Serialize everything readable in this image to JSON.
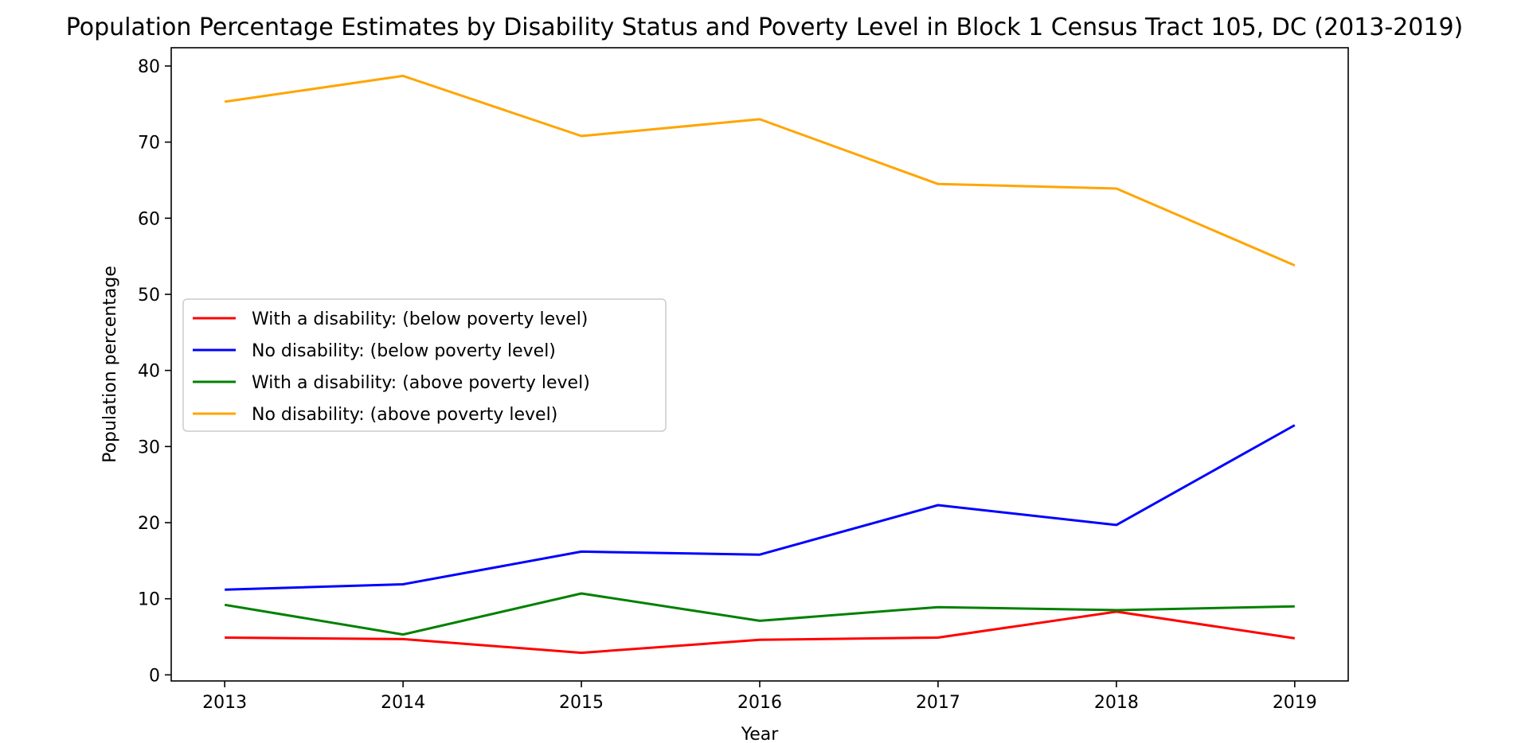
{
  "chart_data": {
    "type": "line",
    "title": "Population Percentage Estimates by Disability Status and Poverty Level in Block 1 Census Tract 105, DC (2013-2019)",
    "xlabel": "Year",
    "ylabel": "Population percentage",
    "x": [
      2013,
      2014,
      2015,
      2016,
      2017,
      2018,
      2019
    ],
    "xlim": [
      2012.7,
      2019.3
    ],
    "ylim": [
      -0.8,
      82.4
    ],
    "yticks": [
      0,
      10,
      20,
      30,
      40,
      50,
      60,
      70,
      80
    ],
    "grid": false,
    "legend_position": "center-left",
    "series": [
      {
        "name": "With a disability: (below poverty level)",
        "color": "#ff0000",
        "values": [
          4.9,
          4.7,
          2.9,
          4.6,
          4.9,
          8.3,
          4.8
        ]
      },
      {
        "name": "No disability: (below poverty level)",
        "color": "#0000ff",
        "values": [
          11.2,
          11.9,
          16.2,
          15.8,
          22.3,
          19.7,
          32.8
        ]
      },
      {
        "name": "With a disability: (above poverty level)",
        "color": "#008000",
        "values": [
          9.2,
          5.3,
          10.7,
          7.1,
          8.9,
          8.5,
          9.0
        ]
      },
      {
        "name": "No disability: (above poverty level)",
        "color": "#ffa500",
        "values": [
          75.3,
          78.7,
          70.8,
          73.0,
          64.5,
          63.9,
          53.8
        ]
      }
    ]
  }
}
